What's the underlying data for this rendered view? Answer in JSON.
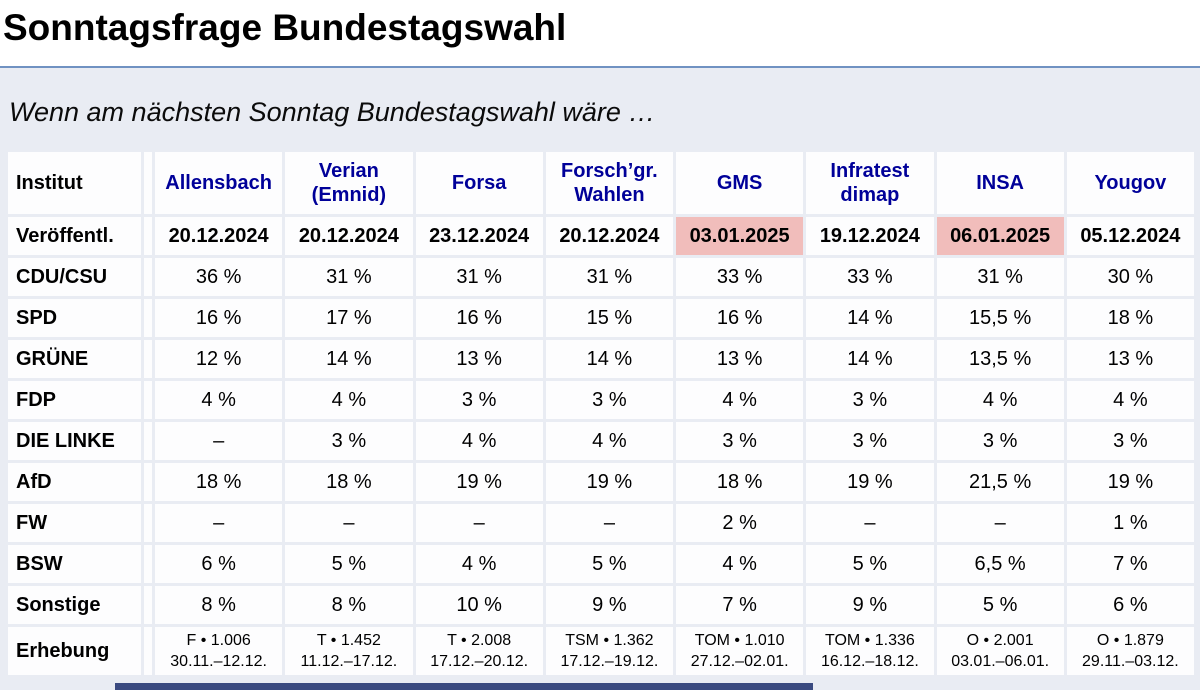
{
  "page": {
    "title": "Sonntagsfrage Bundestagswahl",
    "subtitle": "Wenn am nächsten Sonntag Bundestagswahl wäre …"
  },
  "colors": {
    "page_bg": "#e9ecf3",
    "cell_bg": "#fdfdfe",
    "institute_text": "#000099",
    "date_highlight_bg": "#f1bdbb",
    "title_rule": "#7092c2",
    "bottom_bar": "#3a4a80"
  },
  "table": {
    "corner_label": "Institut",
    "institutes": [
      "Allensbach",
      "Verian\n(Emnid)",
      "Forsa",
      "Forsch’gr.\nWahlen",
      "GMS",
      "Infratest\ndimap",
      "INSA",
      "Yougov"
    ],
    "published_label": "Veröffentl.",
    "published": [
      {
        "date": "20.12.2024",
        "highlight": false
      },
      {
        "date": "20.12.2024",
        "highlight": false
      },
      {
        "date": "23.12.2024",
        "highlight": false
      },
      {
        "date": "20.12.2024",
        "highlight": false
      },
      {
        "date": "03.01.2025",
        "highlight": true
      },
      {
        "date": "19.12.2024",
        "highlight": false
      },
      {
        "date": "06.01.2025",
        "highlight": true
      },
      {
        "date": "05.12.2024",
        "highlight": false
      }
    ],
    "party_rows": [
      {
        "label": "CDU/CSU",
        "values": [
          "36 %",
          "31 %",
          "31 %",
          "31 %",
          "33 %",
          "33 %",
          "31 %",
          "30 %"
        ]
      },
      {
        "label": "SPD",
        "values": [
          "16 %",
          "17 %",
          "16 %",
          "15 %",
          "16 %",
          "14 %",
          "15,5 %",
          "18 %"
        ]
      },
      {
        "label": "GRÜNE",
        "values": [
          "12 %",
          "14 %",
          "13 %",
          "14 %",
          "13 %",
          "14 %",
          "13,5 %",
          "13 %"
        ]
      },
      {
        "label": "FDP",
        "values": [
          "4 %",
          "4 %",
          "3 %",
          "3 %",
          "4 %",
          "3 %",
          "4 %",
          "4 %"
        ]
      },
      {
        "label": "DIE LINKE",
        "values": [
          "–",
          "3 %",
          "4 %",
          "4 %",
          "3 %",
          "3 %",
          "3 %",
          "3 %"
        ]
      },
      {
        "label": "AfD",
        "values": [
          "18 %",
          "18 %",
          "19 %",
          "19 %",
          "18 %",
          "19 %",
          "21,5 %",
          "19 %"
        ]
      },
      {
        "label": "FW",
        "values": [
          "–",
          "–",
          "–",
          "–",
          "2 %",
          "–",
          "–",
          "1 %"
        ]
      },
      {
        "label": "BSW",
        "values": [
          "6 %",
          "5 %",
          "4 %",
          "5 %",
          "4 %",
          "5 %",
          "6,5 %",
          "7 %"
        ]
      },
      {
        "label": "Sonstige",
        "values": [
          "8 %",
          "8 %",
          "10 %",
          "9 %",
          "7 %",
          "9 %",
          "5 %",
          "6 %"
        ]
      }
    ],
    "survey_label": "Erhebung",
    "survey": [
      {
        "method": "F • 1.006",
        "period": "30.11.–12.12."
      },
      {
        "method": "T • 1.452",
        "period": "11.12.–17.12."
      },
      {
        "method": "T • 2.008",
        "period": "17.12.–20.12."
      },
      {
        "method": "TSM • 1.362",
        "period": "17.12.–19.12."
      },
      {
        "method": "TOM • 1.010",
        "period": "27.12.–02.01."
      },
      {
        "method": "TOM • 1.336",
        "period": "16.12.–18.12."
      },
      {
        "method": "O • 2.001",
        "period": "03.01.–06.01."
      },
      {
        "method": "O • 1.879",
        "period": "29.11.–03.12."
      }
    ]
  }
}
